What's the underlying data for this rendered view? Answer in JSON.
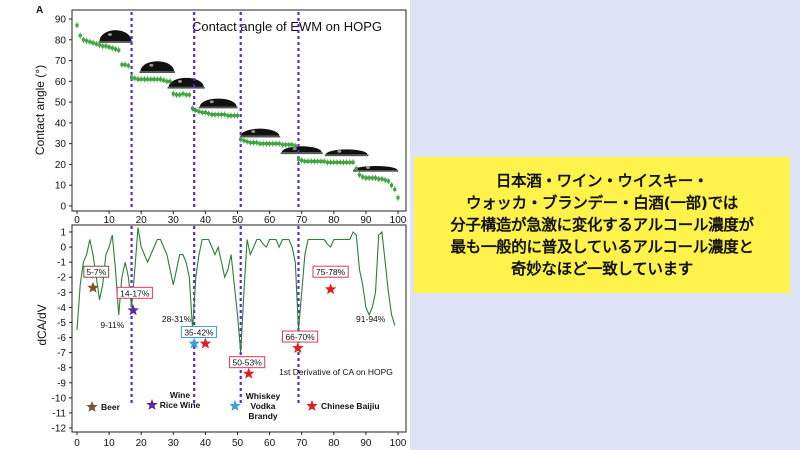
{
  "chart_data": [
    {
      "type": "line",
      "panel_letter": "A",
      "title": "Contact angle of EWM on HOPG",
      "ylabel": "Contact angle (°)",
      "xlim": [
        0,
        100
      ],
      "ylim": [
        0,
        90
      ],
      "xticks": [
        0,
        10,
        20,
        30,
        40,
        50,
        60,
        70,
        80,
        90,
        100
      ],
      "yticks": [
        0,
        10,
        20,
        30,
        40,
        50,
        60,
        70,
        80,
        90
      ],
      "series": [
        {
          "color": "#3FA33F",
          "x": [
            0,
            1,
            2,
            3,
            4,
            5,
            6,
            7,
            8,
            9,
            10,
            11,
            12,
            13,
            14,
            15,
            16,
            17,
            18,
            19,
            20,
            21,
            22,
            23,
            24,
            25,
            26,
            27,
            28,
            29,
            30,
            31,
            32,
            33,
            34,
            35,
            36,
            37,
            38,
            39,
            40,
            41,
            42,
            43,
            44,
            45,
            46,
            47,
            48,
            49,
            50,
            51,
            52,
            53,
            54,
            55,
            56,
            57,
            58,
            59,
            60,
            61,
            62,
            63,
            64,
            65,
            66,
            67,
            68,
            69,
            70,
            71,
            72,
            73,
            74,
            75,
            76,
            77,
            78,
            79,
            80,
            81,
            82,
            83,
            84,
            85,
            86,
            87,
            88,
            89,
            90,
            91,
            92,
            93,
            94,
            95,
            96,
            97,
            98,
            99,
            100
          ],
          "y": [
            87,
            82,
            80,
            79.5,
            79,
            78.5,
            78,
            77.5,
            77,
            77,
            76.5,
            76,
            75.5,
            75,
            68,
            68,
            67.5,
            62,
            61.5,
            61,
            61,
            61,
            61,
            61,
            61,
            61,
            61,
            60.5,
            60,
            60,
            54,
            53.5,
            53.5,
            54,
            53.5,
            53.5,
            47,
            46,
            45.5,
            45,
            45,
            44.5,
            44,
            44,
            44,
            44,
            44,
            43.5,
            43.5,
            43.5,
            43.5,
            32,
            31.5,
            31,
            30.5,
            30.5,
            30.5,
            30,
            30,
            30,
            30,
            30,
            30,
            30,
            29.5,
            29.5,
            29.5,
            29.5,
            29,
            22.5,
            22,
            21.5,
            21.5,
            21.5,
            21.5,
            21.5,
            21.5,
            21.5,
            21,
            21,
            21,
            21,
            21,
            21,
            21,
            21,
            21,
            18,
            15,
            14,
            13.5,
            13.5,
            13.5,
            13.5,
            13,
            13,
            12.5,
            12,
            10,
            8,
            4
          ]
        }
      ],
      "step_markers_x": [
        17,
        36.5,
        51,
        69
      ]
    },
    {
      "type": "line",
      "annotation": "1st Derivative of CA on HOPG",
      "ylabel": "dCA/dV",
      "xlim": [
        0,
        100
      ],
      "ylim": [
        -12,
        1
      ],
      "xticks": [
        0,
        10,
        20,
        30,
        40,
        50,
        60,
        70,
        80,
        90,
        100
      ],
      "yticks": [
        1,
        0,
        -1,
        -2,
        -3,
        -4,
        -5,
        -6,
        -7,
        -8,
        -9,
        -10,
        -11,
        -12
      ],
      "series": [
        {
          "color": "#2E7D3A",
          "x": [
            0,
            1,
            2,
            3,
            4,
            5,
            6,
            7,
            8,
            9,
            10,
            11,
            12,
            13,
            14,
            15,
            16,
            17,
            18,
            19,
            20,
            21,
            22,
            23,
            24,
            25,
            26,
            27,
            28,
            29,
            30,
            31,
            32,
            33,
            34,
            35,
            36,
            37,
            38,
            39,
            40,
            41,
            42,
            43,
            44,
            45,
            46,
            47,
            48,
            49,
            50,
            51,
            52,
            53,
            54,
            55,
            56,
            57,
            58,
            59,
            60,
            61,
            62,
            63,
            64,
            65,
            66,
            67,
            68,
            69,
            70,
            71,
            72,
            73,
            74,
            75,
            76,
            77,
            78,
            79,
            80,
            81,
            82,
            83,
            84,
            85,
            86,
            87,
            88,
            89,
            90,
            91,
            92,
            93,
            94,
            95,
            96,
            97,
            98,
            99
          ],
          "y": [
            -5.5,
            -2.5,
            -1,
            -0.5,
            0.5,
            -0.5,
            -2,
            -3.5,
            -2.5,
            -0.5,
            0,
            0.8,
            -1.5,
            -4.5,
            -2,
            -1,
            -2,
            -4,
            -1.5,
            1.3,
            0,
            -0.5,
            -1,
            -0.5,
            0,
            0.5,
            0.5,
            0,
            -0.5,
            -1.5,
            -2.5,
            -1.5,
            -0.5,
            -0.5,
            -1,
            -2,
            -5.5,
            -2,
            -0.5,
            0.5,
            0.5,
            0.5,
            0,
            -0.5,
            0,
            -1,
            -2,
            -1.5,
            -0.5,
            -2.5,
            -4.5,
            -7,
            -3,
            0.5,
            -0.5,
            0,
            0.5,
            0.5,
            0.2,
            0,
            0.5,
            0.5,
            0.5,
            0,
            0.5,
            0.5,
            0.5,
            0,
            -1,
            -5.5,
            -3,
            -0.5,
            0.5,
            0.5,
            0.5,
            0.5,
            0.5,
            0.5,
            0.2,
            0,
            0.5,
            0.5,
            0.5,
            0.5,
            0.5,
            0.5,
            1,
            0.8,
            -1.5,
            -2.5,
            -4,
            -4.5,
            -4,
            -3,
            0.8,
            1,
            -1,
            -3,
            -4.5,
            -5.2
          ]
        }
      ],
      "range_labels": [
        {
          "text": "5-7%",
          "x": 6,
          "y": -1.8,
          "boxed": true,
          "box_color": "#7A5230"
        },
        {
          "text": "9-11%",
          "x": 11,
          "y": -5.3,
          "boxed": false
        },
        {
          "text": "14-17%",
          "x": 18,
          "y": -3.2,
          "boxed": true,
          "box_color": "#E03B5A"
        },
        {
          "text": "28-31%",
          "x": 31,
          "y": -4.9,
          "boxed": false
        },
        {
          "text": "35-42%",
          "x": 38,
          "y": -5.8,
          "boxed": true,
          "box_color": "#3AA0D8"
        },
        {
          "text": "50-53%",
          "x": 53,
          "y": -7.8,
          "boxed": true,
          "box_color": "#E03B5A"
        },
        {
          "text": "66-70%",
          "x": 69.5,
          "y": -6.1,
          "boxed": true,
          "box_color": "#E03B5A"
        },
        {
          "text": "75-78%",
          "x": 79,
          "y": -1.8,
          "boxed": true,
          "box_color": "#E03B5A"
        },
        {
          "text": "91-94%",
          "x": 91.5,
          "y": -4.9,
          "boxed": false
        }
      ],
      "stars": [
        {
          "x": 5,
          "y": -2.7,
          "color": "#7A5230"
        },
        {
          "x": 17.5,
          "y": -4.2,
          "color": "#5B2A9E"
        },
        {
          "x": 36.5,
          "y": -6.4,
          "color": "#3AA0D8"
        },
        {
          "x": 40,
          "y": -6.4,
          "color": "#E02020"
        },
        {
          "x": 53.5,
          "y": -8.4,
          "color": "#E02020"
        },
        {
          "x": 68.8,
          "y": -6.7,
          "color": "#E02020"
        },
        {
          "x": 79,
          "y": -2.8,
          "color": "#E02020"
        }
      ],
      "legend": [
        {
          "label": "Beer",
          "color": "#7A5230"
        },
        {
          "label": "Wine\nRice Wine",
          "color": "#5B2A9E"
        },
        {
          "label": "Whiskey\nVodka\nBrandy",
          "color": "#3AA0D8"
        },
        {
          "label": "Chinese Baijiu",
          "color": "#E02020"
        }
      ]
    }
  ],
  "callout": {
    "lines": [
      "日本酒・ワイン・ウイスキー・",
      "ウォッカ・ブランデー・白酒(一部)では",
      "分子構造が急激に変化するアルコール濃度が",
      "最も一般的に普及しているアルコール濃度と",
      "奇妙なほど一致しています"
    ]
  }
}
